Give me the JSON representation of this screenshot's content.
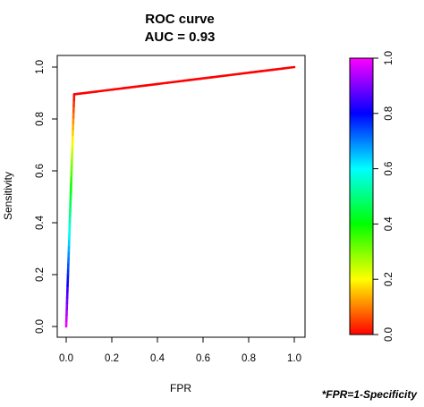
{
  "chart_data": {
    "type": "line",
    "title": "ROC curve",
    "subtitle": "AUC = 0.93",
    "xlabel": "FPR",
    "ylabel": "Sensitivity",
    "xlim": [
      0,
      1
    ],
    "ylim": [
      0,
      1
    ],
    "x_ticks": [
      "0.0",
      "0.2",
      "0.4",
      "0.6",
      "0.8",
      "1.0"
    ],
    "y_ticks": [
      "0.0",
      "0.2",
      "0.4",
      "0.6",
      "0.8",
      "1.0"
    ],
    "grid": false,
    "series": [
      {
        "x": [
          0.0,
          0.035,
          1.0
        ],
        "y": [
          0.0,
          0.895,
          1.0
        ],
        "color_values": [
          1.0,
          0.0,
          0.0
        ]
      }
    ],
    "colorbar": {
      "range": [
        0,
        1
      ],
      "ticks": [
        "0.0",
        "0.2",
        "0.4",
        "0.6",
        "0.8",
        "1.0"
      ],
      "colors": [
        "#ff0000",
        "#ff8000",
        "#ffff00",
        "#80ff00",
        "#00ff00",
        "#00ff80",
        "#00ffff",
        "#0080ff",
        "#0000ff",
        "#8000ff",
        "#ff00ff"
      ]
    },
    "annotation": "*FPR=1-Specificity"
  }
}
